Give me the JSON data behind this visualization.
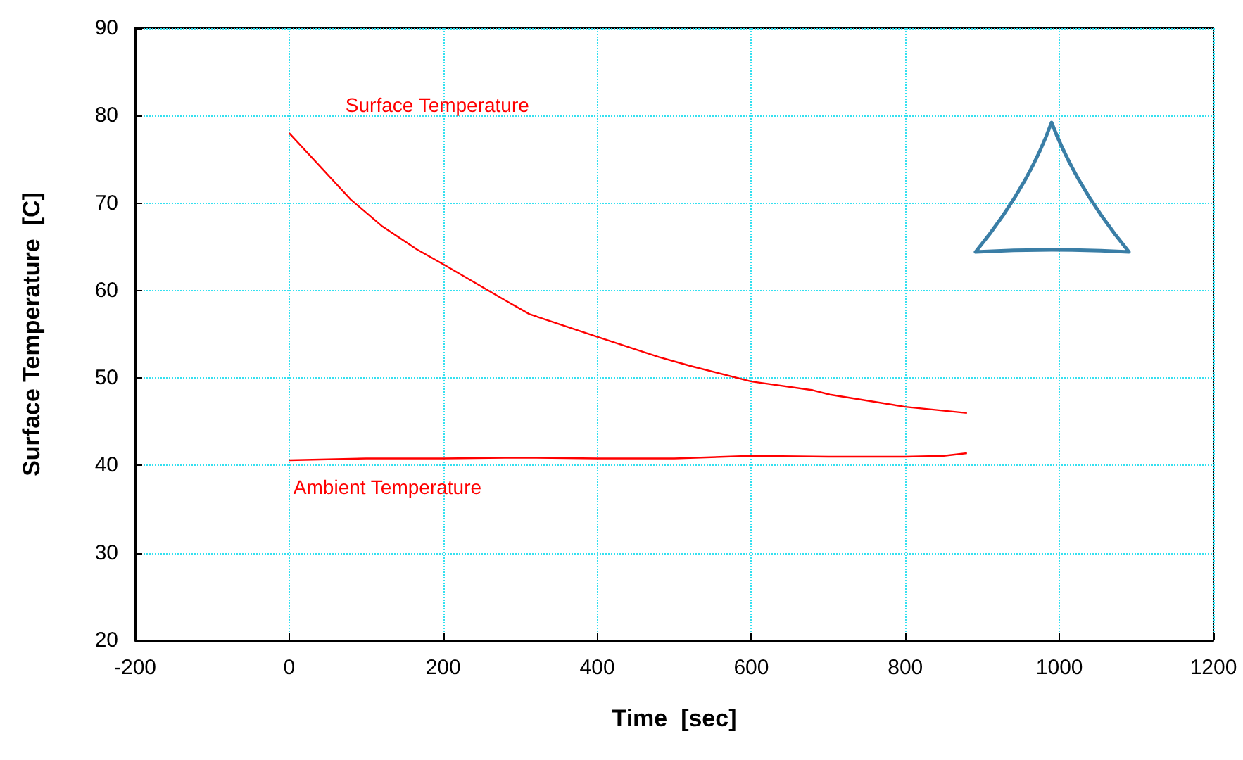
{
  "chart_data": {
    "type": "line",
    "xlabel": "Time  [sec]",
    "ylabel": "Surface Temperature  [C]",
    "xlim": [
      -200,
      1200
    ],
    "xticks": [
      -200,
      0,
      200,
      400,
      600,
      800,
      1000,
      1200
    ],
    "ylim": [
      20,
      90
    ],
    "yticks": [
      20,
      30,
      40,
      50,
      60,
      70,
      80,
      90
    ],
    "grid": true,
    "marker": "none",
    "line_style": "solid",
    "series": [
      {
        "name": "Surface Temperature",
        "color": "#ff0000",
        "x": [
          0,
          40,
          80,
          120,
          166,
          200,
          280,
          312,
          400,
          480,
          520,
          600,
          680,
          702,
          800,
          880
        ],
        "values": [
          78.0,
          74.2,
          70.4,
          67.4,
          64.7,
          63.0,
          58.9,
          57.3,
          54.7,
          52.4,
          51.4,
          49.6,
          48.6,
          48.1,
          46.7,
          46.0
        ]
      },
      {
        "name": "Ambient Temperature",
        "color": "#ff0000",
        "x": [
          0,
          100,
          200,
          300,
          400,
          500,
          600,
          700,
          800,
          850,
          880
        ],
        "values": [
          40.6,
          40.8,
          40.8,
          40.9,
          40.8,
          40.8,
          41.1,
          41.0,
          41.0,
          41.1,
          41.4
        ]
      }
    ]
  }
}
